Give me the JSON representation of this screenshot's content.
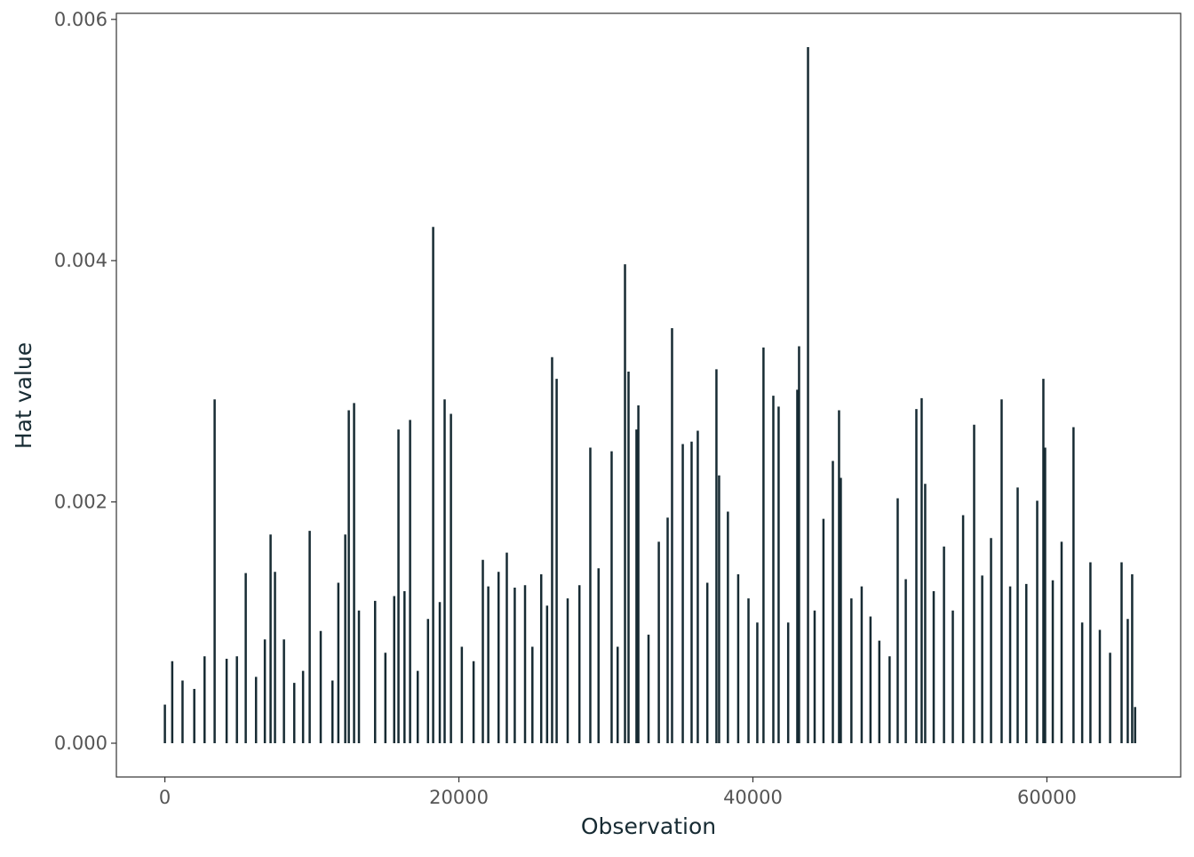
{
  "chart_data": {
    "type": "spike",
    "xlabel": "Observation",
    "ylabel": "Hat value",
    "color": "#172b33",
    "xlim": [
      -3300,
      69100
    ],
    "ylim": [
      -0.00028,
      0.00605
    ],
    "xticks": [
      0,
      20000,
      40000,
      60000
    ],
    "yticks": [
      {
        "value": 0,
        "label": "0.000"
      },
      0.002,
      0.004,
      0.006
    ],
    "x": [
      0,
      500,
      1200,
      2000,
      2700,
      3384,
      4200,
      4900,
      5500,
      6200,
      6800,
      7190,
      7490,
      8100,
      8800,
      9400,
      9850,
      10600,
      11400,
      11800,
      12270,
      12510,
      12870,
      13200,
      14300,
      15000,
      15600,
      15890,
      16300,
      16680,
      17200,
      17900,
      18250,
      18700,
      19030,
      19460,
      20200,
      21000,
      21630,
      22000,
      22700,
      23260,
      23800,
      24500,
      25000,
      25600,
      26000,
      26340,
      26650,
      27400,
      28200,
      28940,
      29500,
      30390,
      30800,
      31300,
      31540,
      32080,
      32210,
      32900,
      33600,
      34200,
      34500,
      35230,
      35830,
      36250,
      36900,
      37520,
      37700,
      38300,
      39000,
      39700,
      40300,
      40720,
      41390,
      41750,
      42400,
      43020,
      43140,
      43750,
      44200,
      44800,
      45440,
      45860,
      45980,
      46700,
      47400,
      48000,
      48600,
      49300,
      49850,
      50400,
      51120,
      51480,
      51720,
      52300,
      53000,
      53600,
      54300,
      55050,
      55600,
      56200,
      56920,
      57500,
      58010,
      58600,
      59340,
      59760,
      59880,
      60400,
      61000,
      61810,
      62400,
      62960,
      63600,
      64300,
      65080,
      65500,
      65800,
      66000
    ],
    "values": [
      0.00032,
      0.00068,
      0.00052,
      0.00045,
      0.00072,
      0.00285,
      0.0007,
      0.00072,
      0.00141,
      0.00055,
      0.00086,
      0.00173,
      0.00142,
      0.00086,
      0.0005,
      0.0006,
      0.00176,
      0.00093,
      0.00052,
      0.00133,
      0.00173,
      0.00276,
      0.00282,
      0.0011,
      0.00118,
      0.00075,
      0.00122,
      0.0026,
      0.00126,
      0.00268,
      0.0006,
      0.00103,
      0.00428,
      0.00117,
      0.00285,
      0.00273,
      0.0008,
      0.00068,
      0.00152,
      0.0013,
      0.00142,
      0.00158,
      0.00129,
      0.00131,
      0.0008,
      0.0014,
      0.00114,
      0.0032,
      0.00302,
      0.0012,
      0.00131,
      0.00245,
      0.00145,
      0.00242,
      0.0008,
      0.00397,
      0.00308,
      0.0026,
      0.0028,
      0.0009,
      0.00167,
      0.00187,
      0.00344,
      0.00248,
      0.0025,
      0.00259,
      0.00133,
      0.0031,
      0.00222,
      0.00192,
      0.0014,
      0.0012,
      0.001,
      0.00328,
      0.00288,
      0.00279,
      0.001,
      0.00293,
      0.00329,
      0.00577,
      0.0011,
      0.00186,
      0.00234,
      0.00276,
      0.0022,
      0.0012,
      0.0013,
      0.00105,
      0.00085,
      0.00072,
      0.00203,
      0.00136,
      0.00277,
      0.00286,
      0.00215,
      0.00126,
      0.00163,
      0.0011,
      0.00189,
      0.00264,
      0.00139,
      0.0017,
      0.00285,
      0.0013,
      0.00212,
      0.00132,
      0.00201,
      0.00302,
      0.00245,
      0.00135,
      0.00167,
      0.00262,
      0.001,
      0.0015,
      0.00094,
      0.00075,
      0.0015,
      0.00103,
      0.0014,
      0.0003
    ]
  }
}
